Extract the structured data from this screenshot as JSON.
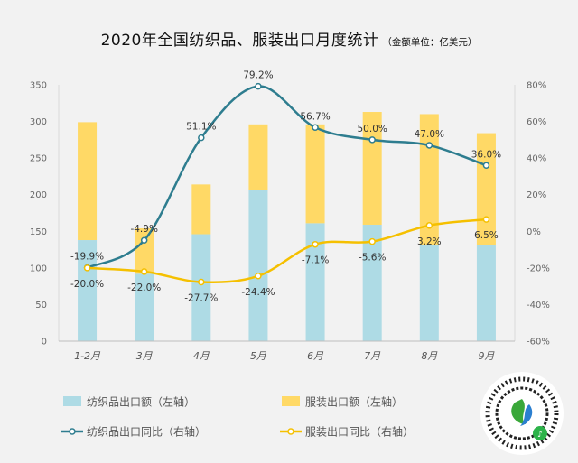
{
  "chart_data": {
    "type": "bar",
    "title": "2020年全国纺织品、服装出口月度统计",
    "subtitle": "（金额单位：亿美元）",
    "categories": [
      "1-2月",
      "3月",
      "4月",
      "5月",
      "6月",
      "7月",
      "8月",
      "9月"
    ],
    "bar_series": [
      {
        "name": "纺织品出口额（左轴）",
        "values": [
          138,
          92,
          146,
          206,
          161,
          159,
          131,
          131
        ],
        "color": "#aedbe5"
      },
      {
        "name": "服装出口额（左轴）",
        "values": [
          161,
          62,
          68,
          90,
          135,
          154,
          179,
          153
        ],
        "color": "#ffd966"
      }
    ],
    "line_series": [
      {
        "name": "纺织品出口同比（右轴）",
        "values": [
          -19.9,
          -4.9,
          51.1,
          79.2,
          56.7,
          50.0,
          47.0,
          36.0
        ],
        "labels": [
          "-19.9%",
          "-4.9%",
          "51.1%",
          "79.2%",
          "56.7%",
          "50.0%",
          "47.0%",
          "36.0%"
        ],
        "color": "#2e7d8f"
      },
      {
        "name": "服装出口同比（右轴）",
        "values": [
          -20.0,
          -22.0,
          -27.7,
          -24.4,
          -7.1,
          -5.6,
          3.2,
          6.5
        ],
        "labels": [
          "-20.0%",
          "-22.0%",
          "-27.7%",
          "-24.4%",
          "-7.1%",
          "-5.6%",
          "3.2%",
          "6.5%"
        ],
        "color": "#f5c000"
      }
    ],
    "y_left": {
      "ylim": [
        0,
        350
      ],
      "ticks": [
        "0",
        "50",
        "100",
        "150",
        "200",
        "250",
        "300",
        "350"
      ]
    },
    "y_right": {
      "ylim": [
        -60,
        80
      ],
      "ticks": [
        "-60%",
        "-40%",
        "-20%",
        "0%",
        "20%",
        "40%",
        "60%",
        "80%"
      ]
    },
    "grid": false,
    "legend": "bottom"
  }
}
